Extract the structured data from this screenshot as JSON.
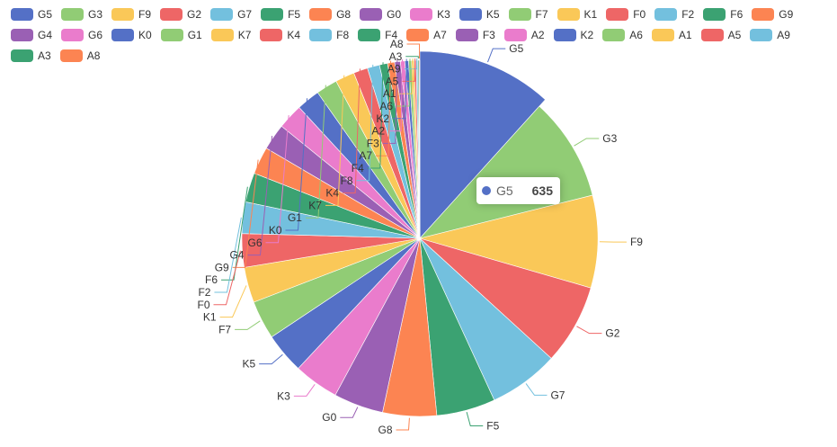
{
  "chart_data": {
    "type": "pie",
    "categories": [
      "G5",
      "G3",
      "F9",
      "G2",
      "G7",
      "F5",
      "G8",
      "G0",
      "K3",
      "K5",
      "F7",
      "K1",
      "F0",
      "F2",
      "F6",
      "G9",
      "G4",
      "G6",
      "K0",
      "G1",
      "K7",
      "K4",
      "F8",
      "F4",
      "A7",
      "F3",
      "A2",
      "K2",
      "A6",
      "A1",
      "A5",
      "A9",
      "A3",
      "A8"
    ],
    "values": [
      635,
      510,
      455,
      395,
      345,
      290,
      265,
      245,
      222,
      200,
      190,
      175,
      165,
      155,
      145,
      135,
      130,
      125,
      115,
      105,
      95,
      70,
      60,
      40,
      35,
      28,
      22,
      18,
      15,
      12,
      10,
      8,
      6,
      4
    ],
    "colors": [
      "#5470c6",
      "#91cc75",
      "#fac858",
      "#ee6666",
      "#73c0de",
      "#3ba272",
      "#fc8452",
      "#9a60b4",
      "#ea7ccc"
    ],
    "legend_position": "top-left",
    "tooltip": {
      "name": "G5",
      "value": "635"
    }
  }
}
